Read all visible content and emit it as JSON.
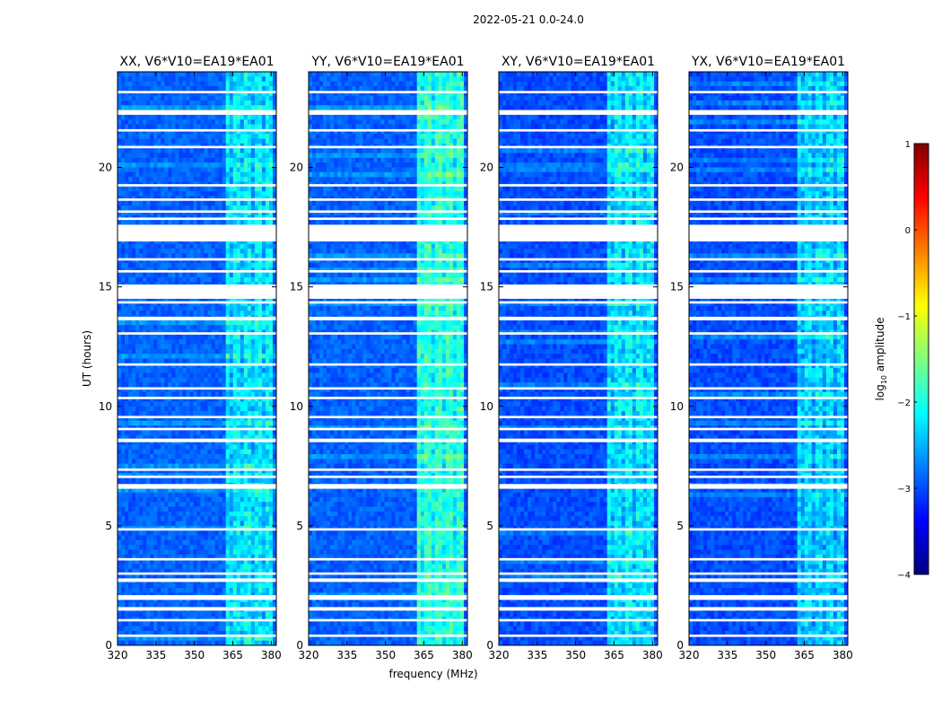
{
  "figure_title": "2022-05-21 0.0-24.0",
  "colormap": [
    "#00007f",
    "#0000ff",
    "#007fff",
    "#00ffff",
    "#7fff7f",
    "#ffff00",
    "#ff7f00",
    "#ff0000",
    "#7f0000"
  ],
  "chart_data": [
    {
      "type": "heatmap",
      "title": "XX, V6*V10=EA19*EA01",
      "xlabel": "",
      "ylabel": "UT (hours)",
      "xlim": [
        320,
        382
      ],
      "ylim": [
        0,
        24
      ],
      "xticks": [
        320,
        335,
        350,
        365,
        380
      ],
      "yticks": [
        0,
        5,
        10,
        15,
        20
      ],
      "rfi_band_mhz": [
        362,
        380
      ],
      "base_log10_amplitude": -2.9,
      "band_log10_amplitude": -2.2,
      "flagged_hours": [
        [
          0.35,
          0.45
        ],
        [
          1.0,
          1.1
        ],
        [
          1.45,
          1.6
        ],
        [
          1.9,
          2.1
        ],
        [
          2.65,
          2.8
        ],
        [
          2.95,
          3.05
        ],
        [
          3.55,
          3.65
        ],
        [
          4.8,
          4.9
        ],
        [
          6.55,
          6.75
        ],
        [
          7.0,
          7.1
        ],
        [
          7.3,
          7.4
        ],
        [
          8.5,
          8.65
        ],
        [
          9.0,
          9.1
        ],
        [
          9.5,
          9.6
        ],
        [
          10.3,
          10.4
        ],
        [
          10.7,
          10.8
        ],
        [
          11.7,
          11.8
        ],
        [
          13.0,
          13.1
        ],
        [
          13.6,
          13.75
        ],
        [
          14.3,
          14.4
        ],
        [
          14.5,
          15.1
        ],
        [
          15.6,
          15.7
        ],
        [
          16.1,
          16.2
        ],
        [
          16.9,
          17.6
        ],
        [
          17.8,
          17.9
        ],
        [
          18.1,
          18.2
        ],
        [
          18.6,
          18.7
        ],
        [
          19.2,
          19.3
        ],
        [
          20.8,
          20.9
        ],
        [
          21.5,
          21.6
        ],
        [
          22.2,
          22.4
        ],
        [
          23.1,
          23.2
        ]
      ]
    },
    {
      "type": "heatmap",
      "title": "YY, V6*V10=EA19*EA01",
      "xlabel": "frequency (MHz)",
      "ylabel": "",
      "xlim": [
        320,
        382
      ],
      "ylim": [
        0,
        24
      ],
      "xticks": [
        320,
        335,
        350,
        365,
        380
      ],
      "yticks": [
        0,
        5,
        10,
        15,
        20
      ],
      "rfi_band_mhz": [
        362,
        380
      ],
      "base_log10_amplitude": -2.9,
      "band_log10_amplitude": -1.9,
      "flagged_hours": [
        [
          0.35,
          0.45
        ],
        [
          1.0,
          1.1
        ],
        [
          1.45,
          1.6
        ],
        [
          1.9,
          2.1
        ],
        [
          2.65,
          2.8
        ],
        [
          2.95,
          3.05
        ],
        [
          3.55,
          3.65
        ],
        [
          4.8,
          4.9
        ],
        [
          6.55,
          6.75
        ],
        [
          7.0,
          7.1
        ],
        [
          7.3,
          7.4
        ],
        [
          8.5,
          8.65
        ],
        [
          9.0,
          9.1
        ],
        [
          9.5,
          9.6
        ],
        [
          10.3,
          10.4
        ],
        [
          10.7,
          10.8
        ],
        [
          11.7,
          11.8
        ],
        [
          13.0,
          13.1
        ],
        [
          13.6,
          13.75
        ],
        [
          14.3,
          14.4
        ],
        [
          14.5,
          15.1
        ],
        [
          15.6,
          15.7
        ],
        [
          16.1,
          16.2
        ],
        [
          16.9,
          17.6
        ],
        [
          17.8,
          17.9
        ],
        [
          18.1,
          18.2
        ],
        [
          18.6,
          18.7
        ],
        [
          19.2,
          19.3
        ],
        [
          20.8,
          20.9
        ],
        [
          21.5,
          21.6
        ],
        [
          22.2,
          22.4
        ],
        [
          23.1,
          23.2
        ]
      ]
    },
    {
      "type": "heatmap",
      "title": "XY, V6*V10=EA19*EA01",
      "xlabel": "",
      "ylabel": "",
      "xlim": [
        320,
        382
      ],
      "ylim": [
        0,
        24
      ],
      "xticks": [
        320,
        335,
        350,
        365,
        380
      ],
      "yticks": [
        0,
        5,
        10,
        15,
        20
      ],
      "rfi_band_mhz": [
        362,
        380
      ],
      "base_log10_amplitude": -3.0,
      "band_log10_amplitude": -2.2,
      "flagged_hours": [
        [
          0.35,
          0.45
        ],
        [
          1.0,
          1.1
        ],
        [
          1.45,
          1.6
        ],
        [
          1.9,
          2.1
        ],
        [
          2.65,
          2.8
        ],
        [
          2.95,
          3.05
        ],
        [
          3.55,
          3.65
        ],
        [
          4.8,
          4.9
        ],
        [
          6.55,
          6.75
        ],
        [
          7.0,
          7.1
        ],
        [
          7.3,
          7.4
        ],
        [
          8.5,
          8.65
        ],
        [
          9.0,
          9.1
        ],
        [
          9.5,
          9.6
        ],
        [
          10.3,
          10.4
        ],
        [
          10.7,
          10.8
        ],
        [
          11.7,
          11.8
        ],
        [
          13.0,
          13.1
        ],
        [
          13.6,
          13.75
        ],
        [
          14.3,
          14.4
        ],
        [
          14.5,
          15.1
        ],
        [
          15.6,
          15.7
        ],
        [
          16.1,
          16.2
        ],
        [
          16.9,
          17.6
        ],
        [
          17.8,
          17.9
        ],
        [
          18.1,
          18.2
        ],
        [
          18.6,
          18.7
        ],
        [
          19.2,
          19.3
        ],
        [
          20.8,
          20.9
        ],
        [
          21.5,
          21.6
        ],
        [
          22.2,
          22.4
        ],
        [
          23.1,
          23.2
        ]
      ]
    },
    {
      "type": "heatmap",
      "title": "YX, V6*V10=EA19*EA01",
      "xlabel": "",
      "ylabel": "",
      "xlim": [
        320,
        382
      ],
      "ylim": [
        0,
        24
      ],
      "xticks": [
        320,
        335,
        350,
        365,
        380
      ],
      "yticks": [
        0,
        5,
        10,
        15,
        20
      ],
      "rfi_band_mhz": [
        362,
        380
      ],
      "base_log10_amplitude": -3.0,
      "band_log10_amplitude": -2.3,
      "flagged_hours": [
        [
          0.35,
          0.45
        ],
        [
          1.0,
          1.1
        ],
        [
          1.45,
          1.6
        ],
        [
          1.9,
          2.1
        ],
        [
          2.65,
          2.8
        ],
        [
          2.95,
          3.05
        ],
        [
          3.55,
          3.65
        ],
        [
          4.8,
          4.9
        ],
        [
          6.55,
          6.75
        ],
        [
          7.0,
          7.1
        ],
        [
          7.3,
          7.4
        ],
        [
          8.5,
          8.65
        ],
        [
          9.0,
          9.1
        ],
        [
          9.5,
          9.6
        ],
        [
          10.3,
          10.4
        ],
        [
          10.7,
          10.8
        ],
        [
          11.7,
          11.8
        ],
        [
          13.0,
          13.1
        ],
        [
          13.6,
          13.75
        ],
        [
          14.3,
          14.4
        ],
        [
          14.5,
          15.1
        ],
        [
          15.6,
          15.7
        ],
        [
          16.1,
          16.2
        ],
        [
          16.9,
          17.6
        ],
        [
          17.8,
          17.9
        ],
        [
          18.1,
          18.2
        ],
        [
          18.6,
          18.7
        ],
        [
          19.2,
          19.3
        ],
        [
          20.8,
          20.9
        ],
        [
          21.5,
          21.6
        ],
        [
          22.2,
          22.4
        ],
        [
          23.1,
          23.2
        ]
      ]
    }
  ],
  "colorbar": {
    "label_prefix": "log",
    "label_sub": "10",
    "label_suffix": " amplitude",
    "range": [
      -4,
      1
    ],
    "ticks": [
      "1",
      "0",
      "−1",
      "−2",
      "−3",
      "−4"
    ],
    "tick_values": [
      1,
      0,
      -1,
      -2,
      -3,
      -4
    ]
  }
}
